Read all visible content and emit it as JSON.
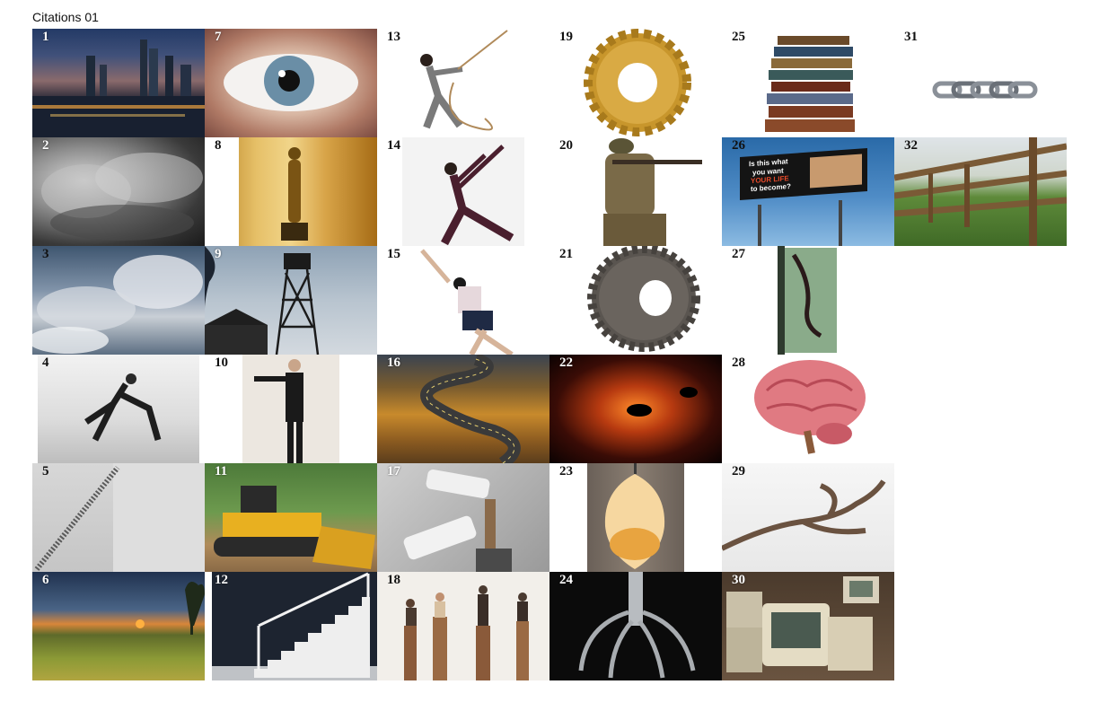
{
  "page": {
    "title": "Citations 01"
  },
  "tiles": [
    {
      "n": "1"
    },
    {
      "n": "2"
    },
    {
      "n": "3"
    },
    {
      "n": "4"
    },
    {
      "n": "5"
    },
    {
      "n": "6"
    },
    {
      "n": "7"
    },
    {
      "n": "8"
    },
    {
      "n": "9"
    },
    {
      "n": "10"
    },
    {
      "n": "11"
    },
    {
      "n": "12"
    },
    {
      "n": "13"
    },
    {
      "n": "14"
    },
    {
      "n": "15"
    },
    {
      "n": "16"
    },
    {
      "n": "17"
    },
    {
      "n": "18"
    },
    {
      "n": "19"
    },
    {
      "n": "20"
    },
    {
      "n": "21"
    },
    {
      "n": "22"
    },
    {
      "n": "23"
    },
    {
      "n": "24"
    },
    {
      "n": "25"
    },
    {
      "n": "26"
    },
    {
      "n": "27"
    },
    {
      "n": "28"
    },
    {
      "n": "29"
    },
    {
      "n": "30"
    },
    {
      "n": "31"
    },
    {
      "n": "32"
    }
  ],
  "billboard": {
    "line1": "Is this what",
    "line2": "you want",
    "line3": "YOUR LIFE",
    "line4": "to become?"
  }
}
